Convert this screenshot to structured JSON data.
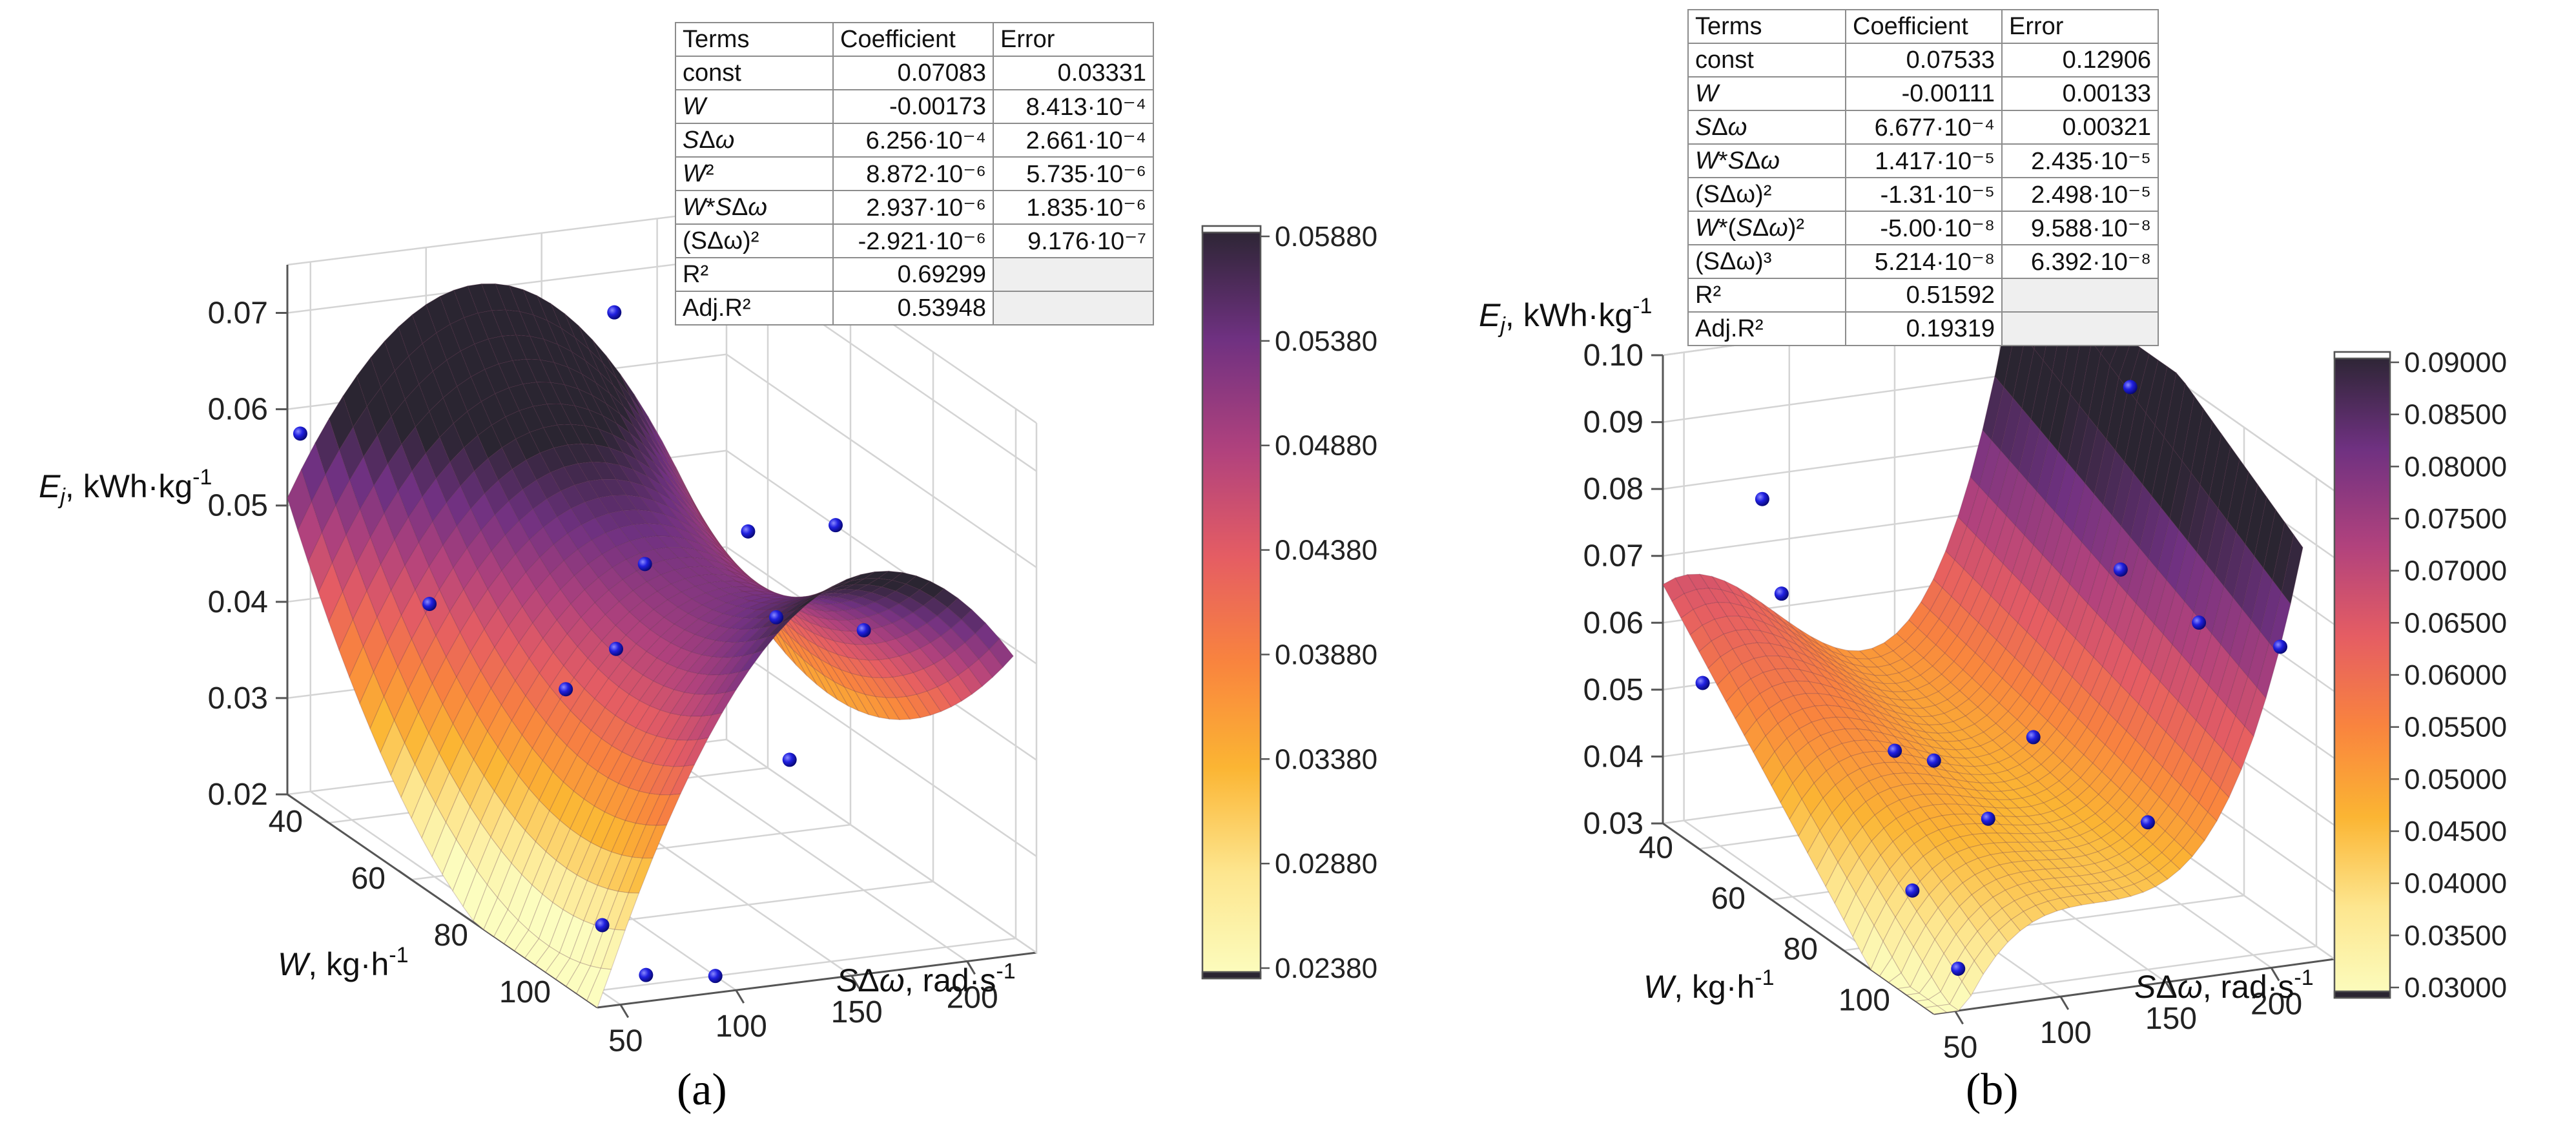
{
  "panels": [
    {
      "label": "(a)",
      "title": "",
      "table": {
        "headers": [
          "Terms",
          "Coefficient",
          "Error"
        ],
        "rows": [
          {
            "term": "const",
            "coef": "0.07083",
            "err": "0.03331"
          },
          {
            "term": "W",
            "term_html": "<i>W</i>",
            "coef": "-0.00173",
            "err": "8.413·10⁻⁴"
          },
          {
            "term": "SΔω",
            "term_html": "<i>S</i>Δ<i>ω</i>",
            "coef": "6.256·10⁻⁴",
            "err": "2.661·10⁻⁴"
          },
          {
            "term": "W²",
            "term_html": "<i>W</i>²",
            "coef": "8.872·10⁻⁶",
            "err": "5.735·10⁻⁶"
          },
          {
            "term": "W*SΔω",
            "term_html": "<i>W</i>*<i>S</i>Δ<i>ω</i>",
            "coef": "2.937·10⁻⁶",
            "err": "1.835·10⁻⁶"
          },
          {
            "term": "(SΔω)²",
            "coef": "-2.921·10⁻⁶",
            "err": "9.176·10⁻⁷"
          },
          {
            "term": "R²",
            "coef": "0.69299",
            "err": ""
          },
          {
            "term": "Adj.R²",
            "coef": "0.53948",
            "err": ""
          }
        ]
      },
      "colorbar": {
        "min": 0.0238,
        "max": 0.0588,
        "ticks": [
          "0.02380",
          "0.02880",
          "0.03380",
          "0.03880",
          "0.04380",
          "0.04880",
          "0.05380",
          "0.05880"
        ]
      }
    },
    {
      "label": "(b)",
      "title": "",
      "table": {
        "headers": [
          "Terms",
          "Coefficient",
          "Error"
        ],
        "rows": [
          {
            "term": "const",
            "coef": "0.07533",
            "err": "0.12906"
          },
          {
            "term": "W",
            "term_html": "<i>W</i>",
            "coef": "-0.00111",
            "err": "0.00133"
          },
          {
            "term": "SΔω",
            "term_html": "<i>S</i>Δ<i>ω</i>",
            "coef": "6.677·10⁻⁴",
            "err": "0.00321"
          },
          {
            "term": "W*SΔω",
            "term_html": "<i>W</i>*<i>S</i>Δ<i>ω</i>",
            "coef": "1.417·10⁻⁵",
            "err": "2.435·10⁻⁵"
          },
          {
            "term": "(SΔω)²",
            "coef": "-1.31·10⁻⁵",
            "err": "2.498·10⁻⁵"
          },
          {
            "term": "W*(SΔω)²",
            "term_html": "<i>W</i>*(<i>S</i>Δ<i>ω</i>)²",
            "coef": "-5.00·10⁻⁸",
            "err": "9.588·10⁻⁸"
          },
          {
            "term": "(SΔω)³",
            "coef": "5.214·10⁻⁸",
            "err": "6.392·10⁻⁸"
          },
          {
            "term": "R²",
            "coef": "0.51592",
            "err": ""
          },
          {
            "term": "Adj.R²",
            "coef": "0.19319",
            "err": ""
          }
        ]
      },
      "colorbar": {
        "min": 0.03,
        "max": 0.09,
        "ticks": [
          "0.03000",
          "0.03500",
          "0.04000",
          "0.04500",
          "0.05000",
          "0.05500",
          "0.06000",
          "0.06500",
          "0.07000",
          "0.07500",
          "0.08000",
          "0.08500",
          "0.09000"
        ]
      }
    }
  ],
  "chart_data": [
    {
      "type": "surface3d",
      "xlabel": "W, kg·h⁻¹",
      "ylabel": "SΔω, rad·s⁻¹",
      "zlabel": "Ej, kWh·kg⁻¹",
      "xlim": [
        30,
        105
      ],
      "ylim": [
        40,
        230
      ],
      "zlim": [
        0.02,
        0.075
      ],
      "xticks": [
        "40",
        "60",
        "80",
        "100"
      ],
      "yticks": [
        "50",
        "100",
        "150",
        "200"
      ],
      "zticks": [
        "0.02",
        "0.03",
        "0.04",
        "0.05",
        "0.06",
        "0.07"
      ],
      "model": {
        "const": 0.07083,
        "W": -0.00173,
        "S": 0.0006256,
        "W2": 8.872e-06,
        "WS": 2.937e-06,
        "S2": -2.921e-06,
        "WS2": 0,
        "S3": 0
      },
      "surface_range": {
        "W": [
          30,
          105
        ],
        "S": [
          40,
          220
        ]
      },
      "points": [
        {
          "W": 32,
          "S": 42,
          "E": 0.058
        },
        {
          "W": 56,
          "S": 55,
          "E": 0.047
        },
        {
          "W": 42,
          "S": 160,
          "E": 0.07
        },
        {
          "W": 75,
          "S": 80,
          "E": 0.043
        },
        {
          "W": 95,
          "S": 60,
          "E": 0.025
        },
        {
          "W": 100,
          "S": 70,
          "E": 0.021
        },
        {
          "W": 100,
          "S": 100,
          "E": 0.02
        },
        {
          "W": 55,
          "S": 150,
          "E": 0.048
        },
        {
          "W": 90,
          "S": 150,
          "E": 0.038
        },
        {
          "W": 52,
          "S": 200,
          "E": 0.049
        },
        {
          "W": 62,
          "S": 220,
          "E": 0.052
        },
        {
          "W": 80,
          "S": 200,
          "E": 0.047
        },
        {
          "W": 70,
          "S": 180,
          "E": 0.046
        },
        {
          "W": 62,
          "S": 125,
          "E": 0.042
        }
      ]
    },
    {
      "type": "surface3d",
      "xlabel": "W, kg·h⁻¹",
      "ylabel": "SΔω, rad·s⁻¹",
      "zlabel": "Ej, kWh·kg⁻¹",
      "xlim": [
        30,
        105
      ],
      "ylim": [
        40,
        230
      ],
      "zlim": [
        0.03,
        0.1
      ],
      "xticks": [
        "40",
        "60",
        "80",
        "100"
      ],
      "yticks": [
        "50",
        "100",
        "150",
        "200"
      ],
      "zticks": [
        "0.03",
        "0.04",
        "0.05",
        "0.06",
        "0.07",
        "0.08",
        "0.09",
        "0.10"
      ],
      "model": {
        "const": 0.07533,
        "W": -0.00111,
        "S": 0.0006677,
        "W2": 0,
        "WS": 1.417e-05,
        "S2": -1.31e-05,
        "WS2": -5e-08,
        "S3": 5.214e-08
      },
      "surface_range": {
        "W": [
          30,
          105
        ],
        "S": [
          40,
          215
        ]
      },
      "points": [
        {
          "W": 34,
          "S": 52,
          "E": 0.052
        },
        {
          "W": 40,
          "S": 70,
          "E": 0.081
        },
        {
          "W": 50,
          "S": 62,
          "E": 0.071
        },
        {
          "W": 66,
          "S": 200,
          "E": 0.102
        },
        {
          "W": 92,
          "S": 52,
          "E": 0.043
        },
        {
          "W": 100,
          "S": 60,
          "E": 0.034
        },
        {
          "W": 100,
          "S": 150,
          "E": 0.052
        },
        {
          "W": 85,
          "S": 200,
          "E": 0.074
        },
        {
          "W": 80,
          "S": 130,
          "E": 0.058
        },
        {
          "W": 70,
          "S": 100,
          "E": 0.052
        },
        {
          "W": 65,
          "S": 90,
          "E": 0.052
        },
        {
          "W": 85,
          "S": 100,
          "E": 0.049
        },
        {
          "W": 90,
          "S": 230,
          "E": 0.071
        },
        {
          "W": 75,
          "S": 180,
          "E": 0.079
        }
      ]
    }
  ]
}
